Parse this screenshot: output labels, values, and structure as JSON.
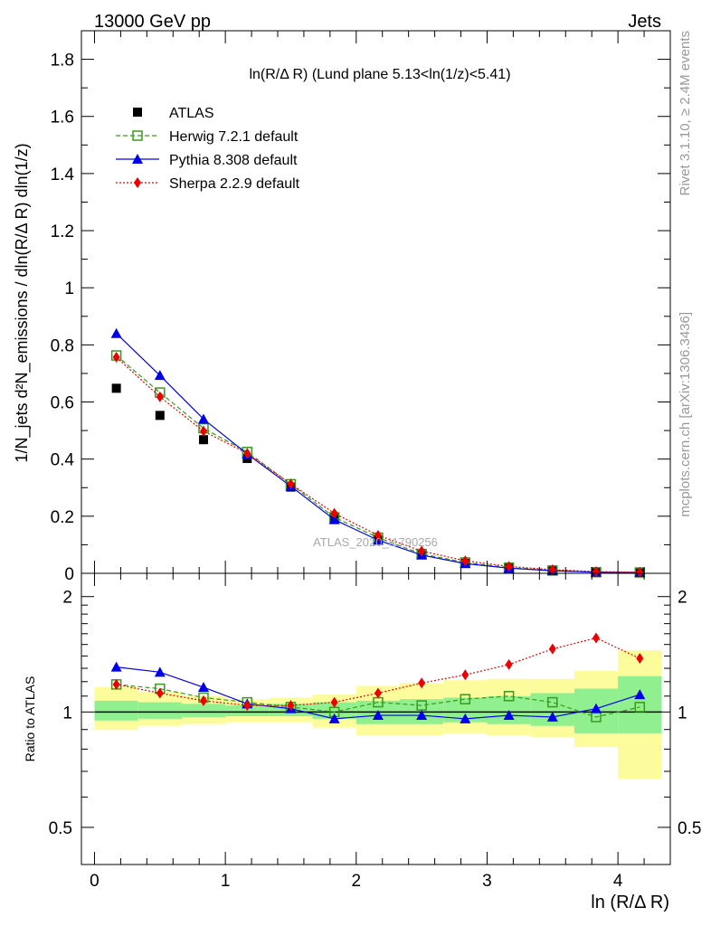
{
  "header": {
    "left_label": "13000 GeV pp",
    "right_label": "Jets"
  },
  "side_labels": {
    "rivet": "Rivet 3.1.10, ≥ 2.4M events",
    "mcplots": "mcplots.cern.ch [arXiv:1306.3436]"
  },
  "watermark": "ATLAS_2020_I1790256",
  "colors": {
    "atlas": "#000000",
    "herwig": "#3a9a1a",
    "pythia": "#0000ee",
    "sherpa": "#ee0000",
    "band_inner": "#90f090",
    "band_outer": "#fcfc9c"
  },
  "chart_data": [
    {
      "type": "line",
      "title": "ln(R/Δ R) (Lund plane 5.13<ln(1/z)<5.41)",
      "xlabel": "ln (R/Δ R)",
      "ylabel": "1/N_jets d²N_emissions / dln(R/Δ R) dln(1/z)",
      "xlim": [
        -0.1,
        4.4
      ],
      "ylim": [
        0,
        1.9
      ],
      "grid": false,
      "legend_position": "top-left",
      "yticks": [
        "0",
        "0.2",
        "0.4",
        "0.6",
        "0.8",
        "1",
        "1.2",
        "1.4",
        "1.6",
        "1.8"
      ],
      "x": [
        0.167,
        0.5,
        0.833,
        1.167,
        1.5,
        1.833,
        2.167,
        2.5,
        2.833,
        3.167,
        3.5,
        3.833,
        4.167
      ],
      "series": [
        {
          "name": "ATLAS",
          "style": "black-square",
          "values": [
            0.648,
            0.553,
            0.468,
            0.402,
            0.302,
            0.196,
            0.118,
            0.065,
            0.035,
            0.018,
            0.009,
            0.004,
            0.003
          ]
        },
        {
          "name": "Herwig 7.2.1 default",
          "style": "green-dashed-open-square",
          "values": [
            0.763,
            0.633,
            0.508,
            0.425,
            0.312,
            0.196,
            0.125,
            0.068,
            0.038,
            0.02,
            0.01,
            0.004,
            0.003
          ]
        },
        {
          "name": "Pythia 8.308 default",
          "style": "blue-solid-triangle",
          "values": [
            0.84,
            0.693,
            0.54,
            0.418,
            0.305,
            0.188,
            0.116,
            0.064,
            0.034,
            0.018,
            0.009,
            0.004,
            0.003
          ]
        },
        {
          "name": "Sherpa 2.2.9 default",
          "style": "red-dotted-diamond",
          "values": [
            0.757,
            0.618,
            0.498,
            0.42,
            0.313,
            0.21,
            0.133,
            0.078,
            0.044,
            0.024,
            0.013,
            0.006,
            0.004
          ]
        }
      ]
    },
    {
      "type": "line",
      "title": "",
      "xlabel": "ln (R/Δ R)",
      "ylabel": "Ratio to ATLAS",
      "xlim": [
        -0.1,
        4.4
      ],
      "ylim": [
        0.4,
        2.3
      ],
      "log_y": true,
      "yticks": [
        "0.5",
        "1",
        "2"
      ],
      "xticks": [
        "0",
        "1",
        "2",
        "3",
        "4"
      ],
      "bin_edges": [
        0.0,
        0.333,
        0.667,
        1.0,
        1.333,
        1.667,
        2.0,
        2.333,
        2.667,
        3.0,
        3.333,
        3.667,
        4.0,
        4.333
      ],
      "band_inner": {
        "low": [
          0.95,
          0.96,
          0.97,
          0.975,
          0.975,
          0.96,
          0.93,
          0.93,
          0.94,
          0.93,
          0.92,
          0.88,
          0.88
        ],
        "high": [
          1.07,
          1.06,
          1.05,
          1.04,
          1.05,
          1.06,
          1.07,
          1.08,
          1.09,
          1.1,
          1.12,
          1.15,
          1.24
        ]
      },
      "band_outer": {
        "low": [
          0.9,
          0.92,
          0.93,
          0.94,
          0.94,
          0.91,
          0.87,
          0.87,
          0.88,
          0.87,
          0.86,
          0.81,
          0.67
        ],
        "high": [
          1.16,
          1.13,
          1.1,
          1.08,
          1.09,
          1.11,
          1.17,
          1.19,
          1.21,
          1.22,
          1.22,
          1.28,
          1.45
        ]
      },
      "series": [
        {
          "name": "Herwig 7.2.1 default",
          "values": [
            1.18,
            1.15,
            1.09,
            1.06,
            1.03,
            1.0,
            1.06,
            1.04,
            1.08,
            1.1,
            1.06,
            0.97,
            1.03
          ]
        },
        {
          "name": "Pythia 8.308 default",
          "values": [
            1.31,
            1.27,
            1.16,
            1.05,
            1.02,
            0.96,
            0.98,
            0.98,
            0.96,
            0.98,
            0.97,
            1.02,
            1.11
          ]
        },
        {
          "name": "Sherpa 2.2.9 default",
          "values": [
            1.18,
            1.12,
            1.07,
            1.04,
            1.04,
            1.06,
            1.12,
            1.19,
            1.25,
            1.33,
            1.46,
            1.56,
            1.38
          ]
        }
      ]
    }
  ]
}
